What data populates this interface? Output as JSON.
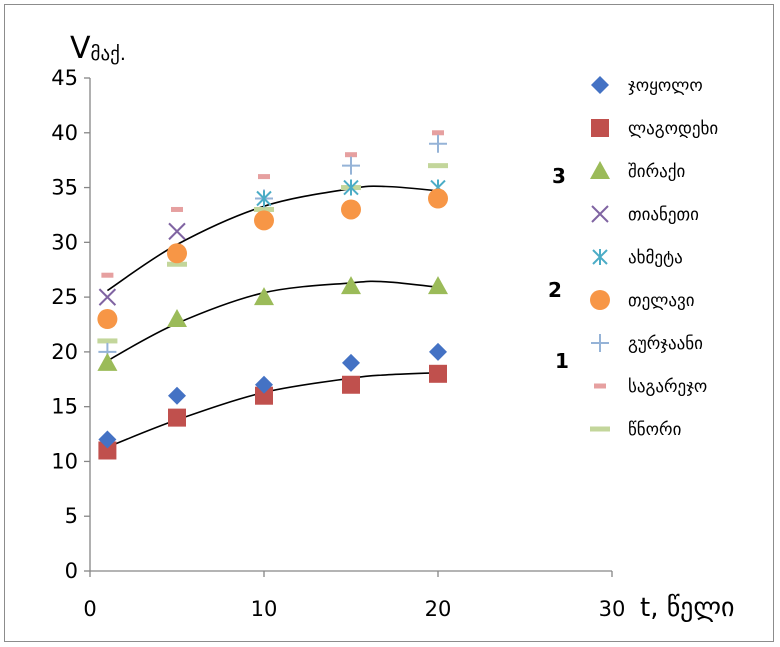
{
  "chart_data": {
    "type": "scatter",
    "ylabel_main": "V",
    "ylabel_sub": "მაქ.",
    "xlabel": "t,  წელი",
    "xlim": [
      0,
      30
    ],
    "ylim": [
      0,
      45
    ],
    "xticks": [
      0,
      10,
      20,
      30
    ],
    "yticks": [
      0,
      5,
      10,
      15,
      20,
      25,
      30,
      35,
      40,
      45
    ],
    "grid": false,
    "legend_position": "right",
    "series": [
      {
        "name": "ჯოყოლო",
        "marker": "diamond",
        "color": "#4472C4",
        "x": [
          1,
          5,
          10,
          15,
          20
        ],
        "y": [
          12,
          16,
          17,
          19,
          20
        ]
      },
      {
        "name": "ლაგოდეხი",
        "marker": "square",
        "color": "#C0504D",
        "x": [
          1,
          5,
          10,
          15,
          20
        ],
        "y": [
          11,
          14,
          16,
          17,
          18
        ]
      },
      {
        "name": "შირაქი",
        "marker": "triangle",
        "color": "#9BBB59",
        "x": [
          1,
          5,
          10,
          15,
          20
        ],
        "y": [
          19,
          23,
          25,
          26,
          26
        ]
      },
      {
        "name": "თიანეთი",
        "marker": "x",
        "color": "#8064A2",
        "x": [
          1,
          5
        ],
        "y": [
          25,
          31
        ]
      },
      {
        "name": "ახმეტა",
        "marker": "star",
        "color": "#4BACC6",
        "x": [
          1,
          5,
          10,
          15,
          20
        ],
        "y": [
          23,
          29,
          34,
          35,
          35
        ]
      },
      {
        "name": "თელავი",
        "marker": "circle",
        "color": "#F79646",
        "x": [
          1,
          5,
          10,
          15,
          20
        ],
        "y": [
          23,
          29,
          32,
          33,
          34
        ]
      },
      {
        "name": "გურჯაანი",
        "marker": "plus",
        "color": "#95B3D7",
        "x": [
          1,
          5,
          10,
          15,
          20
        ],
        "y": [
          20,
          29,
          34,
          37,
          39
        ]
      },
      {
        "name": "საგარეჯო",
        "marker": "dash",
        "color": "#E6A0A0",
        "x": [
          1,
          5,
          10,
          15,
          20
        ],
        "y": [
          27,
          33,
          36,
          38,
          40
        ]
      },
      {
        "name": "წნორი",
        "marker": "bar",
        "color": "#C3D69B",
        "x": [
          1,
          5,
          10,
          15,
          20
        ],
        "y": [
          21,
          28,
          33,
          35,
          37
        ]
      }
    ],
    "trendlines": [
      {
        "label": "1",
        "x": [
          1,
          5,
          10,
          15,
          17,
          20
        ],
        "y": [
          11.3,
          13.8,
          16.3,
          17.6,
          17.9,
          18.1
        ]
      },
      {
        "label": "2",
        "x": [
          1,
          5,
          10,
          15,
          17,
          20
        ],
        "y": [
          19.2,
          22.6,
          25.4,
          26.3,
          26.4,
          25.9
        ]
      },
      {
        "label": "3",
        "x": [
          1,
          5,
          10,
          15,
          17,
          20
        ],
        "y": [
          25.6,
          29.8,
          33.3,
          34.9,
          35.1,
          34.7
        ]
      }
    ]
  }
}
